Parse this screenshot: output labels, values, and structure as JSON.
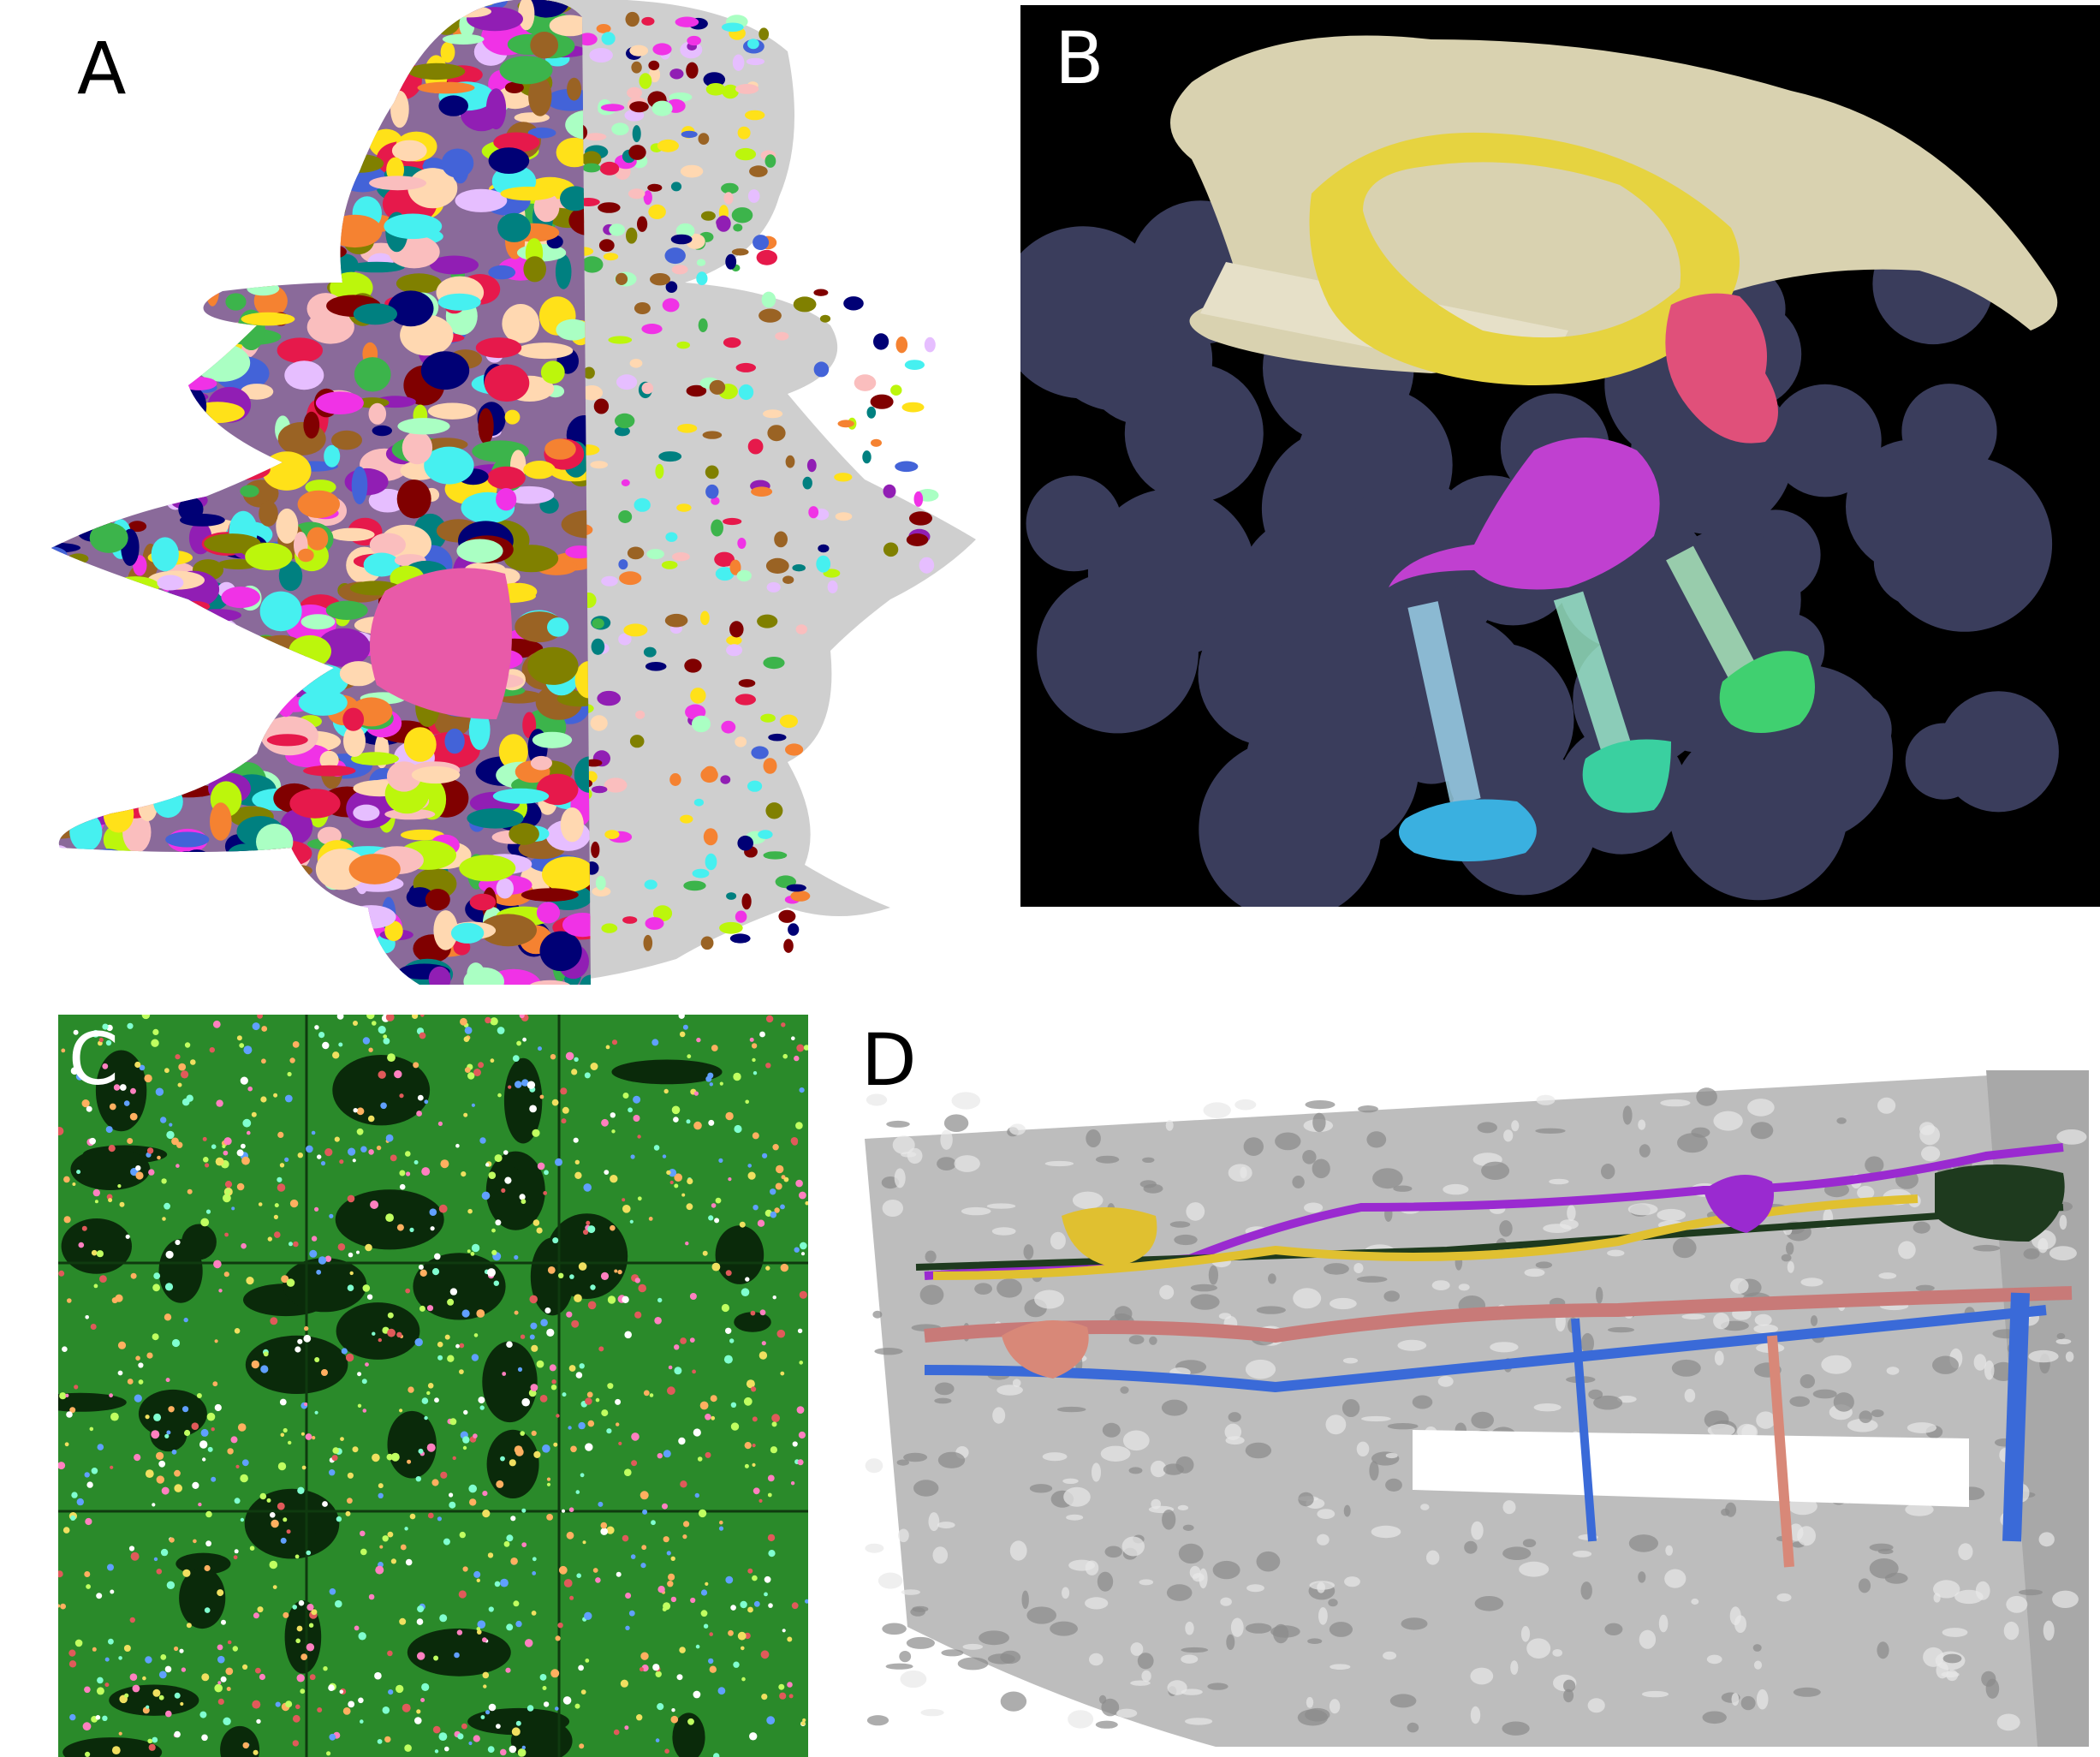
{
  "panels": [
    {
      "label": "A",
      "background": "#ffffff",
      "label_color": "#000000"
    },
    {
      "label": "B",
      "background": "#000000",
      "label_color": "#ffffff"
    },
    {
      "label": "C",
      "background": "#0a3a0a",
      "label_color": "#ffffff"
    },
    {
      "label": "D",
      "background": "#ffffff",
      "label_color": "#000000"
    }
  ],
  "colors": {
    "membrane_green": "#32c832",
    "gray_tissue": "#c8c8c8",
    "tan_tissue": "#d9d2b0",
    "yellow": "#e6d340",
    "pink": "#e0507a",
    "magenta": "#c040d0",
    "cyan": "#3ab0e0",
    "teal": "#3ad0a0",
    "green": "#40d070",
    "lavender": "#7a80b8",
    "dark_green": "#203a20",
    "blue": "#3a6ad8",
    "salmon": "#d88878"
  }
}
